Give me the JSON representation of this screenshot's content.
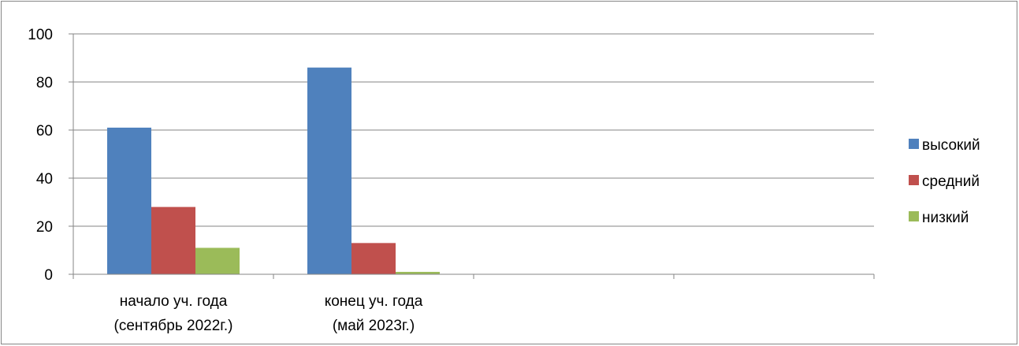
{
  "chart_data": {
    "type": "bar",
    "categories": [
      [
        "начало уч. года",
        "(сентябрь 2022г.)"
      ],
      [
        "конец уч. года",
        "(май 2023г.)"
      ],
      [
        "",
        ""
      ],
      [
        "",
        ""
      ]
    ],
    "series": [
      {
        "name": "высокий",
        "color": "#4F81BD",
        "values": [
          61,
          86,
          null,
          null
        ]
      },
      {
        "name": "средний",
        "color": "#C0504D",
        "values": [
          28,
          13,
          null,
          null
        ]
      },
      {
        "name": "низкий",
        "color": "#9BBB59",
        "values": [
          11,
          1,
          null,
          null
        ]
      }
    ],
    "ylim": [
      0,
      100
    ],
    "yticks": [
      0,
      20,
      40,
      60,
      80,
      100
    ],
    "grid": true,
    "legend": "right",
    "title": "",
    "xlabel": "",
    "ylabel": ""
  }
}
